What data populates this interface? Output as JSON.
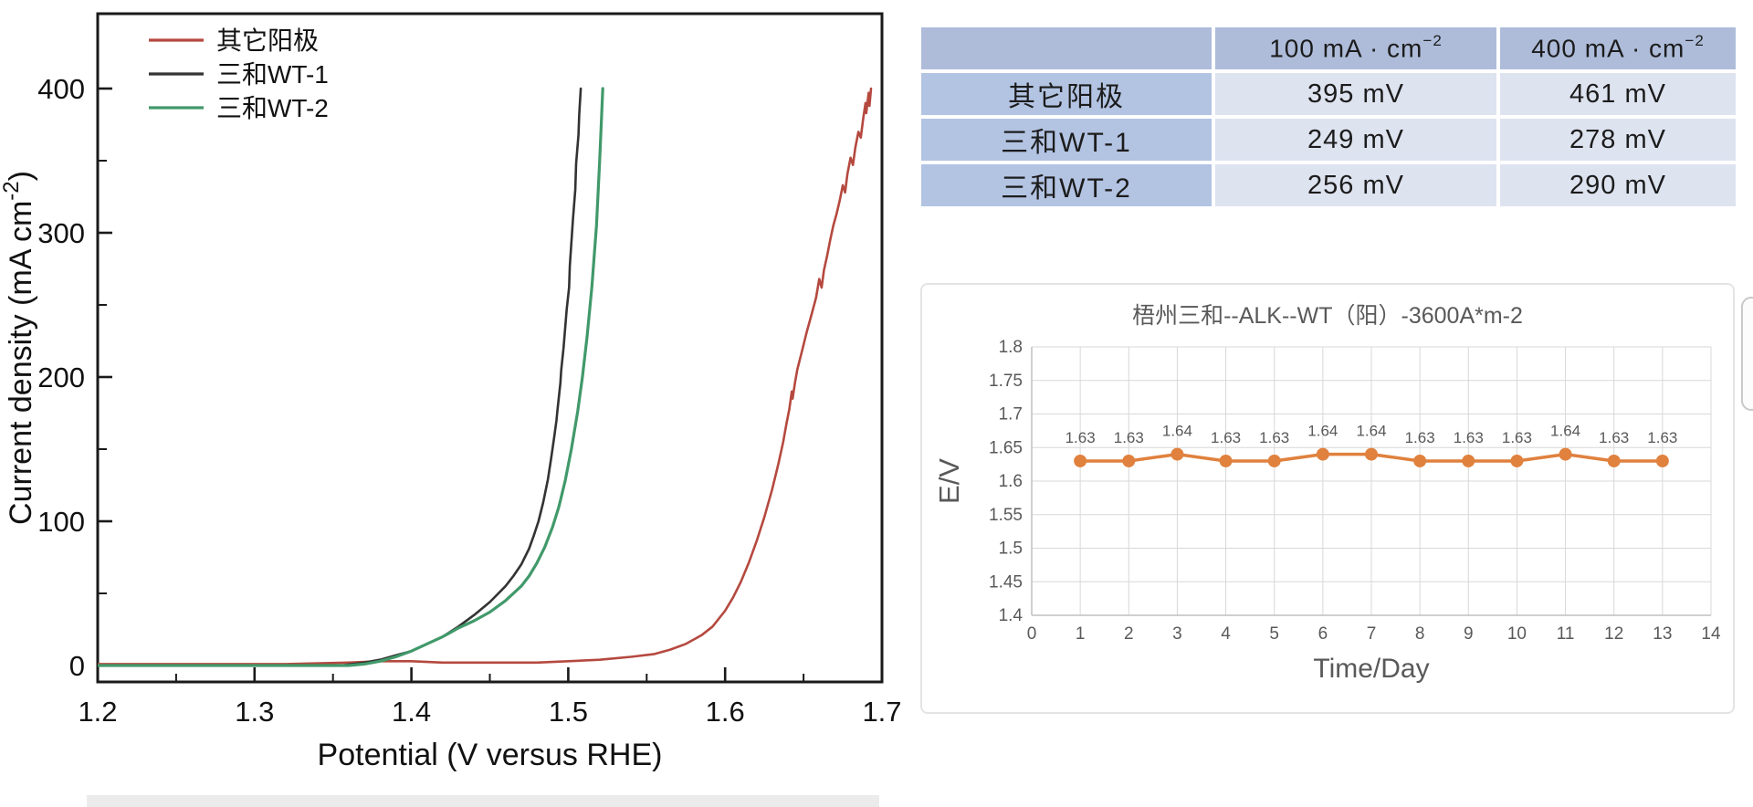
{
  "chart_data": [
    {
      "id": "lsv_polarization_chart",
      "type": "line",
      "xlabel": "Potential (V versus RHE)",
      "ylabel": {
        "prefix": "Current density (mA cm",
        "sup": "-2",
        "suffix": ")"
      },
      "xlim": [
        1.2,
        1.7
      ],
      "ylim": [
        0,
        450
      ],
      "x_ticks": [
        "1.2",
        "1.3",
        "1.4",
        "1.5",
        "1.6",
        "1.7"
      ],
      "y_ticks": [
        "0",
        "100",
        "200",
        "300",
        "400"
      ],
      "x_minor_ticks": [
        1.25,
        1.35,
        1.45,
        1.55,
        1.65
      ],
      "y_minor_ticks": [
        50,
        150,
        250,
        350
      ],
      "grid": "off",
      "legend_position": "top-left-inside",
      "frame_color": "#1a1a1a",
      "text_color": "#111111",
      "series": [
        {
          "name": "其它阳极",
          "color": "#b5493f",
          "width": 2.6,
          "points": [
            [
              1.2,
              1
            ],
            [
              1.24,
              1
            ],
            [
              1.28,
              1
            ],
            [
              1.32,
              1
            ],
            [
              1.36,
              2
            ],
            [
              1.38,
              3
            ],
            [
              1.4,
              3
            ],
            [
              1.42,
              2
            ],
            [
              1.44,
              2
            ],
            [
              1.46,
              2
            ],
            [
              1.48,
              2
            ],
            [
              1.5,
              3
            ],
            [
              1.52,
              4
            ],
            [
              1.54,
              6
            ],
            [
              1.555,
              8
            ],
            [
              1.565,
              11
            ],
            [
              1.575,
              15
            ],
            [
              1.585,
              21
            ],
            [
              1.592,
              27
            ],
            [
              1.6,
              38
            ],
            [
              1.605,
              47
            ],
            [
              1.61,
              58
            ],
            [
              1.615,
              71
            ],
            [
              1.62,
              86
            ],
            [
              1.625,
              103
            ],
            [
              1.63,
              122
            ],
            [
              1.634,
              140
            ],
            [
              1.637,
              155
            ],
            [
              1.639,
              167
            ],
            [
              1.641,
              178
            ],
            [
              1.6425,
              190
            ],
            [
              1.643,
              185
            ],
            [
              1.6445,
              196
            ],
            [
              1.646,
              205
            ],
            [
              1.649,
              218
            ],
            [
              1.652,
              231
            ],
            [
              1.655,
              243
            ],
            [
              1.658,
              255
            ],
            [
              1.66,
              268
            ],
            [
              1.6615,
              262
            ],
            [
              1.663,
              274
            ],
            [
              1.665,
              284
            ],
            [
              1.667,
              295
            ],
            [
              1.669,
              305
            ],
            [
              1.671,
              313
            ],
            [
              1.673,
              322
            ],
            [
              1.675,
              333
            ],
            [
              1.6765,
              328
            ],
            [
              1.678,
              341
            ],
            [
              1.68,
              352
            ],
            [
              1.6815,
              347
            ],
            [
              1.683,
              359
            ],
            [
              1.685,
              370
            ],
            [
              1.6865,
              366
            ],
            [
              1.688,
              379
            ],
            [
              1.6895,
              390
            ],
            [
              1.69,
              383
            ],
            [
              1.6915,
              397
            ],
            [
              1.692,
              388
            ],
            [
              1.693,
              400
            ]
          ]
        },
        {
          "name": "三和WT-1",
          "color": "#333333",
          "width": 2.6,
          "points": [
            [
              1.2,
              0
            ],
            [
              1.3,
              0
            ],
            [
              1.355,
              0
            ],
            [
              1.37,
              2
            ],
            [
              1.38,
              4
            ],
            [
              1.39,
              7
            ],
            [
              1.4,
              10
            ],
            [
              1.41,
              15
            ],
            [
              1.42,
              20
            ],
            [
              1.43,
              27
            ],
            [
              1.44,
              35
            ],
            [
              1.45,
              44
            ],
            [
              1.46,
              55
            ],
            [
              1.465,
              62
            ],
            [
              1.47,
              70
            ],
            [
              1.475,
              81
            ],
            [
              1.478,
              90
            ],
            [
              1.481,
              100
            ],
            [
              1.484,
              113
            ],
            [
              1.487,
              129
            ],
            [
              1.489,
              143
            ],
            [
              1.491,
              158
            ],
            [
              1.4925,
              170
            ],
            [
              1.493,
              176
            ],
            [
              1.495,
              196
            ],
            [
              1.4955,
              205
            ],
            [
              1.497,
              220
            ],
            [
              1.499,
              247
            ],
            [
              1.5005,
              262
            ],
            [
              1.501,
              277
            ],
            [
              1.503,
              310
            ],
            [
              1.5045,
              330
            ],
            [
              1.505,
              348
            ],
            [
              1.5065,
              368
            ],
            [
              1.507,
              382
            ],
            [
              1.508,
              400
            ]
          ]
        },
        {
          "name": "三和WT-2",
          "color": "#41996a",
          "width": 3.2,
          "points": [
            [
              1.2,
              0
            ],
            [
              1.3,
              0
            ],
            [
              1.36,
              0
            ],
            [
              1.37,
              1
            ],
            [
              1.38,
              3
            ],
            [
              1.39,
              6
            ],
            [
              1.4,
              10
            ],
            [
              1.41,
              15
            ],
            [
              1.42,
              20
            ],
            [
              1.425,
              23
            ],
            [
              1.43,
              26
            ],
            [
              1.44,
              31
            ],
            [
              1.45,
              37
            ],
            [
              1.46,
              45
            ],
            [
              1.47,
              55
            ],
            [
              1.475,
              62
            ],
            [
              1.48,
              71
            ],
            [
              1.485,
              82
            ],
            [
              1.49,
              96
            ],
            [
              1.494,
              110
            ],
            [
              1.498,
              128
            ],
            [
              1.502,
              150
            ],
            [
              1.506,
              176
            ],
            [
              1.509,
              200
            ],
            [
              1.512,
              228
            ],
            [
              1.515,
              262
            ],
            [
              1.518,
              305
            ],
            [
              1.52,
              350
            ],
            [
              1.522,
              400
            ]
          ]
        }
      ]
    },
    {
      "id": "overpotential_table",
      "type": "table",
      "header": [
        {
          "text": ""
        },
        {
          "prefix": "100 mA · cm",
          "sup": "−2"
        },
        {
          "prefix": "400 mA · cm",
          "sup": "−2"
        }
      ],
      "rows": [
        {
          "label": "其它阳极",
          "values": [
            "395 mV",
            "461 mV"
          ]
        },
        {
          "label": "三和WT-1",
          "values": [
            "249 mV",
            "278 mV"
          ]
        },
        {
          "label": "三和WT-2",
          "values": [
            "256 mV",
            "290 mV"
          ]
        }
      ],
      "colors": {
        "header_bg": "#aebcda",
        "label_bg": "#b3c3e2",
        "cell_bg": "#dee3f0"
      }
    },
    {
      "id": "stability_chart",
      "type": "line",
      "title": "梧州三和--ALK--WT（阳）-3600A*m-2",
      "xlabel": "Time/Day",
      "ylabel": "E/V",
      "x": [
        1,
        2,
        3,
        4,
        5,
        6,
        7,
        8,
        9,
        10,
        11,
        12,
        13
      ],
      "values": [
        1.63,
        1.63,
        1.64,
        1.63,
        1.63,
        1.64,
        1.64,
        1.63,
        1.63,
        1.63,
        1.64,
        1.63,
        1.63
      ],
      "data_labels": [
        "1.63",
        "1.63",
        "1.64",
        "1.63",
        "1.63",
        "1.64",
        "1.64",
        "1.63",
        "1.63",
        "1.63",
        "1.64",
        "1.63",
        "1.63"
      ],
      "xlim": [
        0,
        14
      ],
      "ylim": [
        1.4,
        1.8
      ],
      "x_ticks": [
        "0",
        "1",
        "2",
        "3",
        "4",
        "5",
        "6",
        "7",
        "8",
        "9",
        "10",
        "11",
        "12",
        "13",
        "14"
      ],
      "y_ticks": [
        "1.4",
        "1.45",
        "1.5",
        "1.55",
        "1.6",
        "1.65",
        "1.7",
        "1.75",
        "1.8"
      ],
      "grid": "on",
      "legend_position": "none",
      "line_color": "#e0813e",
      "grid_color": "#d8d8d8",
      "axis_color": "#c0c0c0",
      "text_color": "#595959"
    }
  ]
}
